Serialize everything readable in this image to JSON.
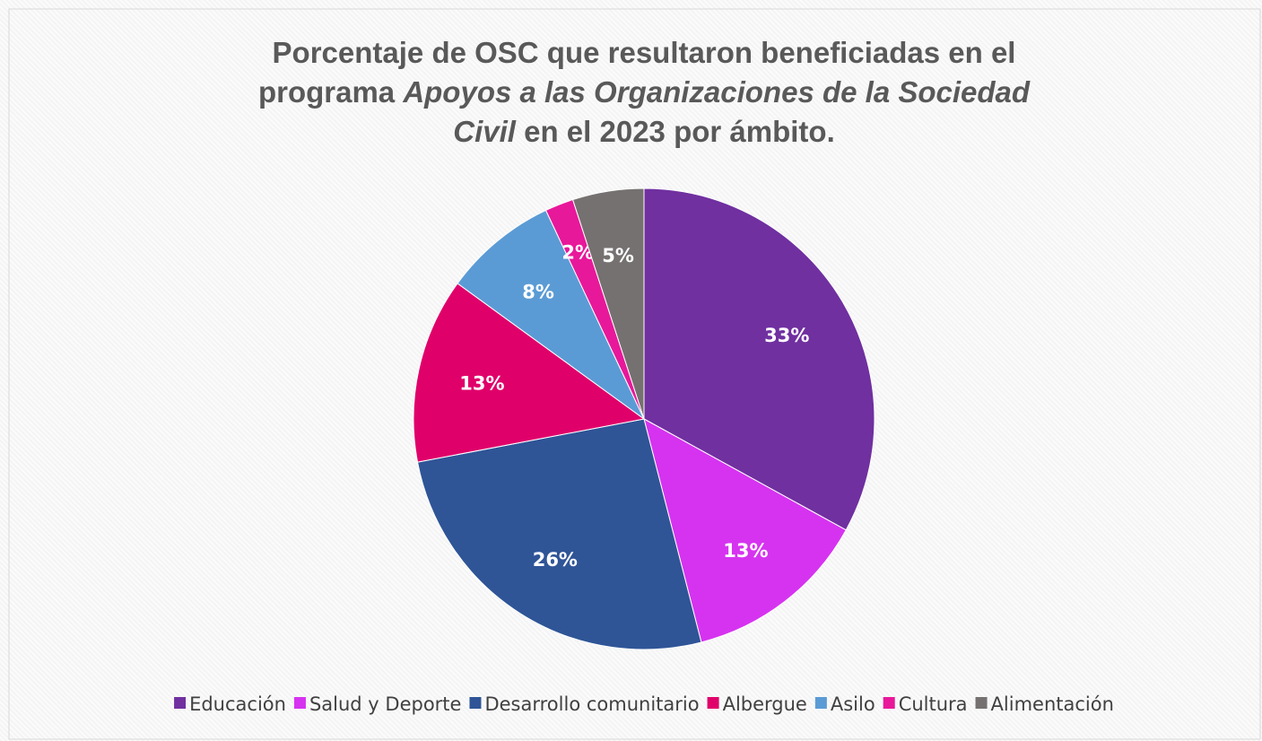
{
  "chart_data": {
    "type": "pie",
    "title_lines": [
      [
        {
          "text": "Porcentaje de OSC que resultaron beneficiadas en el",
          "italic": false
        }
      ],
      [
        {
          "text": "programa ",
          "italic": false
        },
        {
          "text": "Apoyos a las Organizaciones  de la Sociedad",
          "italic": true
        }
      ],
      [
        {
          "text": "Civil",
          "italic": true
        },
        {
          "text": "  en el 2023 por ámbito.",
          "italic": false
        }
      ]
    ],
    "categories": [
      "Educación",
      "Salud y Deporte",
      "Desarrollo comunitario",
      "Albergue",
      "Asilo",
      "Cultura",
      "Alimentación"
    ],
    "values": [
      33,
      13,
      26,
      13,
      8,
      2,
      5
    ],
    "value_labels": [
      "33%",
      "13%",
      "26%",
      "13%",
      "8%",
      "2%",
      "5%"
    ],
    "colors": [
      "#7030a0",
      "#d633f0",
      "#2f5597",
      "#e0006a",
      "#5b9bd5",
      "#e8189a",
      "#767171"
    ],
    "legend": "bottom"
  }
}
